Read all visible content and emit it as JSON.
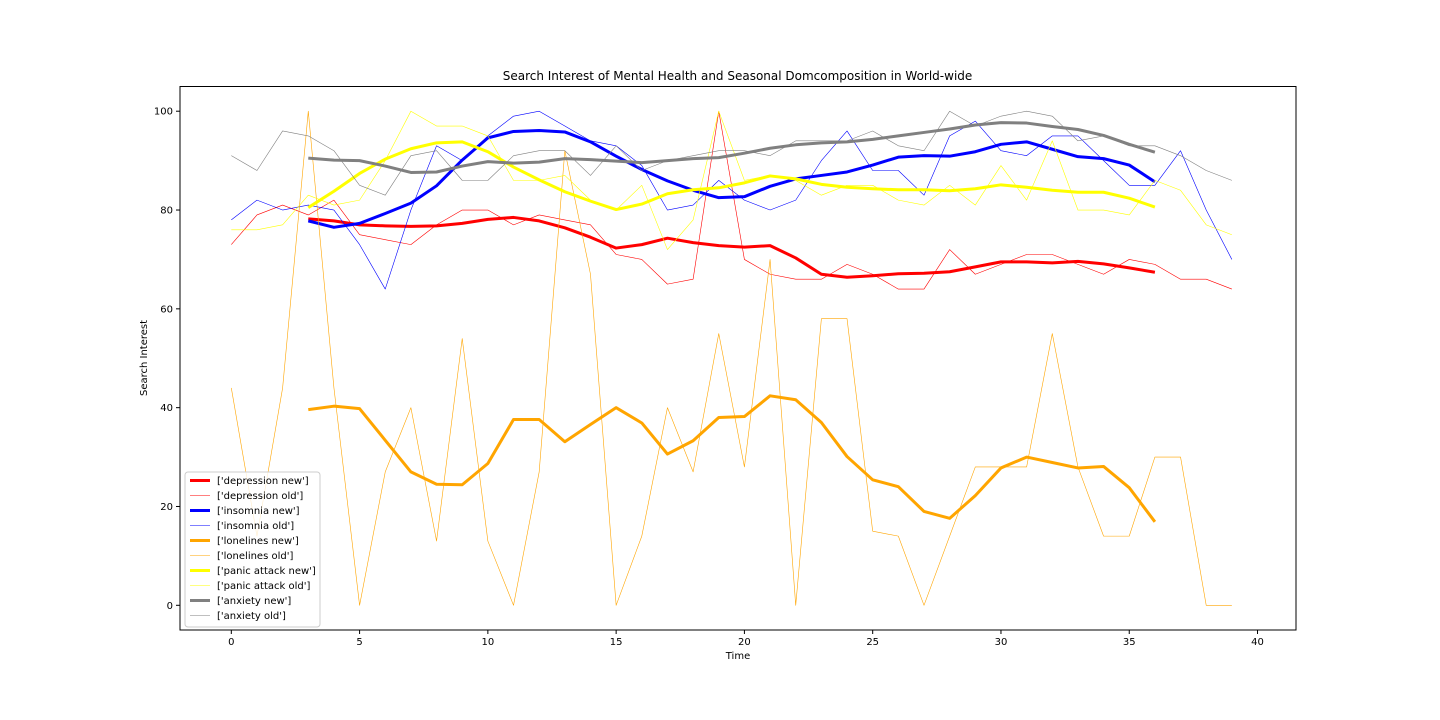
{
  "chart_data": {
    "type": "line",
    "title": "Search Interest of Mental Health and Seasonal Domcomposition in World-wide",
    "xlabel": "Time",
    "ylabel": "Search Interest",
    "xlim": [
      -2,
      41.5
    ],
    "ylim": [
      -5,
      105
    ],
    "xticks": [
      0,
      5,
      10,
      15,
      20,
      25,
      30,
      35,
      40
    ],
    "yticks": [
      0,
      20,
      40,
      60,
      80,
      100
    ],
    "grid": false,
    "legend_position": "lower-left",
    "series": [
      {
        "name": "['depression new']",
        "color": "#ff0000",
        "style": "thick",
        "x": [
          3,
          4,
          5,
          6,
          7,
          8,
          9,
          10,
          11,
          12,
          13,
          14,
          15,
          16,
          17,
          18,
          19,
          20,
          21,
          22,
          23,
          24,
          25,
          26,
          27,
          28,
          29,
          30,
          31,
          32,
          33,
          34,
          35,
          36
        ],
        "values": [
          78.2,
          77.8,
          77,
          76.8,
          76.7,
          76.8,
          77.3,
          78.1,
          78.5,
          77.8,
          76.4,
          74.5,
          72.3,
          73.0,
          74.3,
          73.4,
          72.8,
          72.5,
          72.8,
          70.3,
          67.0,
          66.4,
          66.7,
          67.1,
          67.2,
          67.5,
          68.5,
          69.5,
          69.5,
          69.3,
          69.6,
          69.1,
          68.3,
          67.4
        ]
      },
      {
        "name": "['depression old']",
        "color": "#ff0000",
        "style": "thin",
        "x": [
          0,
          1,
          2,
          3,
          4,
          5,
          6,
          7,
          8,
          9,
          10,
          11,
          12,
          13,
          14,
          15,
          16,
          17,
          18,
          19,
          20,
          21,
          22,
          23,
          24,
          25,
          26,
          27,
          28,
          29,
          30,
          31,
          32,
          33,
          34,
          35,
          36,
          37,
          38,
          39
        ],
        "values": [
          73,
          79,
          81,
          79,
          82,
          75,
          74,
          73,
          77,
          80,
          80,
          77,
          79,
          78,
          77,
          71,
          70,
          65,
          66,
          100,
          70,
          67,
          66,
          66,
          69,
          67,
          64,
          64,
          72,
          67,
          69,
          71,
          71,
          69,
          67,
          70,
          69,
          66,
          66,
          64
        ]
      },
      {
        "name": "['insomnia new']",
        "color": "#0000ff",
        "style": "thick",
        "x": [
          3,
          4,
          5,
          6,
          7,
          8,
          9,
          10,
          11,
          12,
          13,
          14,
          15,
          16,
          17,
          18,
          19,
          20,
          21,
          22,
          23,
          24,
          25,
          26,
          27,
          28,
          29,
          30,
          31,
          32,
          33,
          34,
          35,
          36
        ],
        "values": [
          77.8,
          76.5,
          77.3,
          79.3,
          81.4,
          84.9,
          90.1,
          94.6,
          95.9,
          96.1,
          95.8,
          93.8,
          90.9,
          88.2,
          85.9,
          84.0,
          82.5,
          82.7,
          84.8,
          86.3,
          87.0,
          87.7,
          89.1,
          90.7,
          91.0,
          90.9,
          91.8,
          93.3,
          93.8,
          92.3,
          90.8,
          90.4,
          89.1,
          85.7
        ]
      },
      {
        "name": "['insomnia old']",
        "color": "#0000ff",
        "style": "thin",
        "x": [
          0,
          1,
          2,
          3,
          4,
          5,
          6,
          7,
          8,
          9,
          10,
          11,
          12,
          13,
          14,
          15,
          16,
          17,
          18,
          19,
          20,
          21,
          22,
          23,
          24,
          25,
          26,
          27,
          28,
          29,
          30,
          31,
          32,
          33,
          34,
          35,
          36,
          37,
          38,
          39
        ],
        "values": [
          78,
          82,
          80,
          81,
          80,
          73,
          64,
          80,
          93,
          90,
          95,
          99,
          100,
          97,
          94,
          93,
          89,
          80,
          81,
          86,
          82,
          80,
          82,
          90,
          96,
          88,
          88,
          83,
          95,
          98,
          92,
          91,
          95,
          95,
          90,
          85,
          85,
          92,
          80,
          70
        ]
      },
      {
        "name": "['lonelines new']",
        "color": "#ffa500",
        "style": "thick",
        "x": [
          3,
          4,
          5,
          6,
          7,
          8,
          9,
          10,
          11,
          12,
          13,
          14,
          15,
          16,
          17,
          18,
          19,
          20,
          21,
          22,
          23,
          24,
          25,
          26,
          27,
          28,
          29,
          30,
          31,
          32,
          33,
          34,
          35,
          36
        ],
        "values": [
          39.6,
          40.3,
          39.8,
          33.4,
          27.0,
          24.5,
          24.4,
          28.7,
          37.6,
          37.6,
          33.1,
          36.6,
          40.0,
          36.9,
          30.6,
          33.3,
          38.0,
          38.2,
          42.4,
          41.6,
          37.0,
          30.1,
          25.4,
          24.0,
          19.0,
          17.6,
          22.2,
          27.8,
          30.0,
          28.9,
          27.8,
          28.1,
          23.8,
          16.9
        ]
      },
      {
        "name": "['lonelines old']",
        "color": "#ffa500",
        "style": "thin",
        "x": [
          0,
          1,
          2,
          3,
          4,
          5,
          6,
          7,
          8,
          9,
          10,
          11,
          12,
          13,
          14,
          15,
          16,
          17,
          18,
          19,
          20,
          21,
          22,
          23,
          24,
          25,
          26,
          27,
          28,
          29,
          30,
          31,
          32,
          33,
          34,
          35,
          36,
          37,
          38,
          39
        ],
        "values": [
          44,
          14,
          44,
          100,
          44,
          0,
          27,
          40,
          13,
          54,
          13,
          0,
          27,
          92,
          67,
          0,
          14,
          40,
          27,
          55,
          28,
          70,
          0,
          58,
          58,
          15,
          14,
          0,
          14,
          28,
          28,
          28,
          55,
          28,
          14,
          14,
          30,
          30,
          0,
          0
        ]
      },
      {
        "name": "['panic attack new']",
        "color": "#ffff00",
        "style": "thick",
        "x": [
          3,
          4,
          5,
          6,
          7,
          8,
          9,
          10,
          11,
          12,
          13,
          14,
          15,
          16,
          17,
          18,
          19,
          20,
          21,
          22,
          23,
          24,
          25,
          26,
          27,
          28,
          29,
          30,
          31,
          32,
          33,
          34,
          35,
          36
        ],
        "values": [
          80.5,
          83.8,
          87.4,
          90.3,
          92.4,
          93.6,
          93.8,
          91.8,
          88.7,
          86.1,
          83.7,
          81.8,
          80.1,
          81.2,
          83.3,
          84.1,
          84.5,
          85.5,
          86.9,
          86.3,
          85.2,
          84.6,
          84.3,
          84.1,
          84.1,
          83.9,
          84.3,
          85.1,
          84.6,
          84.0,
          83.6,
          83.6,
          82.4,
          80.6
        ]
      },
      {
        "name": "['panic attack old']",
        "color": "#ffff00",
        "style": "thin",
        "x": [
          0,
          1,
          2,
          3,
          4,
          5,
          6,
          7,
          8,
          9,
          10,
          11,
          12,
          13,
          14,
          15,
          16,
          17,
          18,
          19,
          20,
          21,
          22,
          23,
          24,
          25,
          26,
          27,
          28,
          29,
          30,
          31,
          32,
          33,
          34,
          35,
          36,
          37,
          38,
          39
        ],
        "values": [
          76,
          76,
          77,
          83,
          81,
          82,
          90,
          100,
          97,
          97,
          95,
          86,
          86,
          87,
          82,
          80,
          85,
          72,
          78,
          100,
          86,
          87,
          86,
          83,
          85,
          85,
          82,
          81,
          85,
          81,
          89,
          82,
          94,
          80,
          80,
          79,
          86,
          84,
          77,
          75
        ]
      },
      {
        "name": "['anxiety new']",
        "color": "#808080",
        "style": "thick",
        "x": [
          3,
          4,
          5,
          6,
          7,
          8,
          9,
          10,
          11,
          12,
          13,
          14,
          15,
          16,
          17,
          18,
          19,
          20,
          21,
          22,
          23,
          24,
          25,
          26,
          27,
          28,
          29,
          30,
          31,
          32,
          33,
          34,
          35,
          36
        ],
        "values": [
          90.5,
          90.1,
          90.0,
          88.9,
          87.6,
          87.7,
          88.9,
          89.8,
          89.5,
          89.7,
          90.4,
          90.2,
          89.9,
          89.6,
          90.0,
          90.4,
          90.6,
          91.5,
          92.5,
          93.2,
          93.6,
          93.8,
          94.3,
          95.0,
          95.7,
          96.4,
          97.2,
          97.7,
          97.6,
          96.9,
          96.3,
          95.1,
          93.3,
          91.7
        ]
      },
      {
        "name": "['anxiety old']",
        "color": "#808080",
        "style": "thin",
        "x": [
          0,
          1,
          2,
          3,
          4,
          5,
          6,
          7,
          8,
          9,
          10,
          11,
          12,
          13,
          14,
          15,
          16,
          17,
          18,
          19,
          20,
          21,
          22,
          23,
          24,
          25,
          26,
          27,
          28,
          29,
          30,
          31,
          32,
          33,
          34,
          35,
          36,
          37,
          38,
          39
        ],
        "values": [
          91,
          88,
          96,
          95,
          92,
          85,
          83,
          91,
          92,
          86,
          86,
          91,
          92,
          92,
          87,
          93,
          88,
          90,
          91,
          92,
          92,
          91,
          94,
          94,
          94,
          96,
          93,
          92,
          100,
          97,
          99,
          100,
          99,
          94,
          95,
          93,
          93,
          91,
          88,
          86
        ]
      }
    ]
  }
}
